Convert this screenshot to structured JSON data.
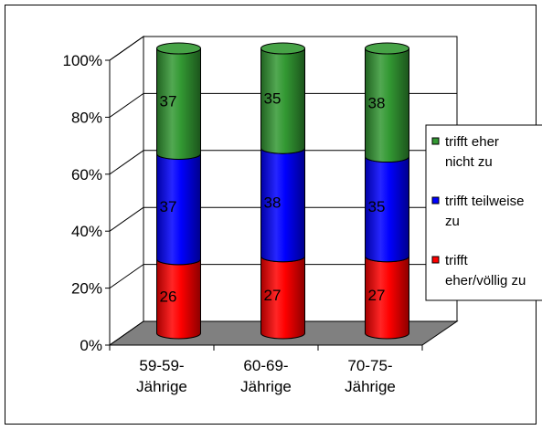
{
  "chart_data": {
    "type": "bar",
    "stacked": true,
    "percent_scale": true,
    "three_d": true,
    "bar_shape": "cylinder",
    "categories": [
      [
        "59-59-",
        "Jährige"
      ],
      [
        "60-69-",
        "Jährige"
      ],
      [
        "70-75-",
        "Jährige"
      ]
    ],
    "series": [
      {
        "name": [
          "trifft",
          "eher/völlig zu"
        ],
        "values": [
          26,
          27,
          27
        ],
        "color": "#ff0000"
      },
      {
        "name": [
          "trifft teilweise",
          "zu"
        ],
        "values": [
          37,
          38,
          35
        ],
        "color": "#0000ff"
      },
      {
        "name": [
          "trifft eher",
          "nicht zu"
        ],
        "values": [
          37,
          35,
          38
        ],
        "color": "#339933"
      }
    ],
    "yticks": [
      "0%",
      "20%",
      "40%",
      "60%",
      "80%",
      "100%"
    ],
    "ylim": [
      0,
      100
    ],
    "grid": true,
    "legend_position": "right",
    "floor_color": "#808080"
  }
}
